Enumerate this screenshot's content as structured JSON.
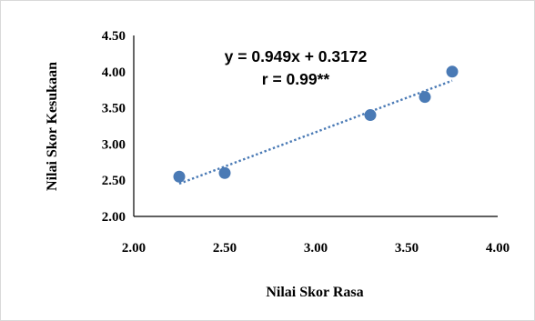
{
  "chart_data": {
    "type": "scatter",
    "title": "",
    "xlabel": "Nilai Skor Rasa",
    "ylabel": "Nilai Skor Kesukaan",
    "xlim": [
      2.0,
      4.0
    ],
    "ylim": [
      2.0,
      4.5
    ],
    "x_ticks": [
      "2.00",
      "2.50",
      "3.00",
      "3.50",
      "4.00"
    ],
    "y_ticks": [
      "2.00",
      "2.50",
      "3.00",
      "3.50",
      "4.00",
      "4.50"
    ],
    "grid": false,
    "legend": "none",
    "series": [
      {
        "points": [
          {
            "x": 2.25,
            "y": 2.55
          },
          {
            "x": 2.5,
            "y": 2.6
          },
          {
            "x": 3.3,
            "y": 3.4
          },
          {
            "x": 3.6,
            "y": 3.65
          },
          {
            "x": 3.75,
            "y": 4.0
          }
        ],
        "color": "#4a7ab5"
      }
    ],
    "trendline": {
      "type": "linear",
      "slope": 0.949,
      "intercept": 0.3172,
      "x_range": [
        2.25,
        3.75
      ],
      "style": "dotted",
      "color": "#4a7ab5"
    },
    "annotations": {
      "equation": "y = 0.949x + 0.3172",
      "correlation": "r = 0.99**"
    }
  }
}
